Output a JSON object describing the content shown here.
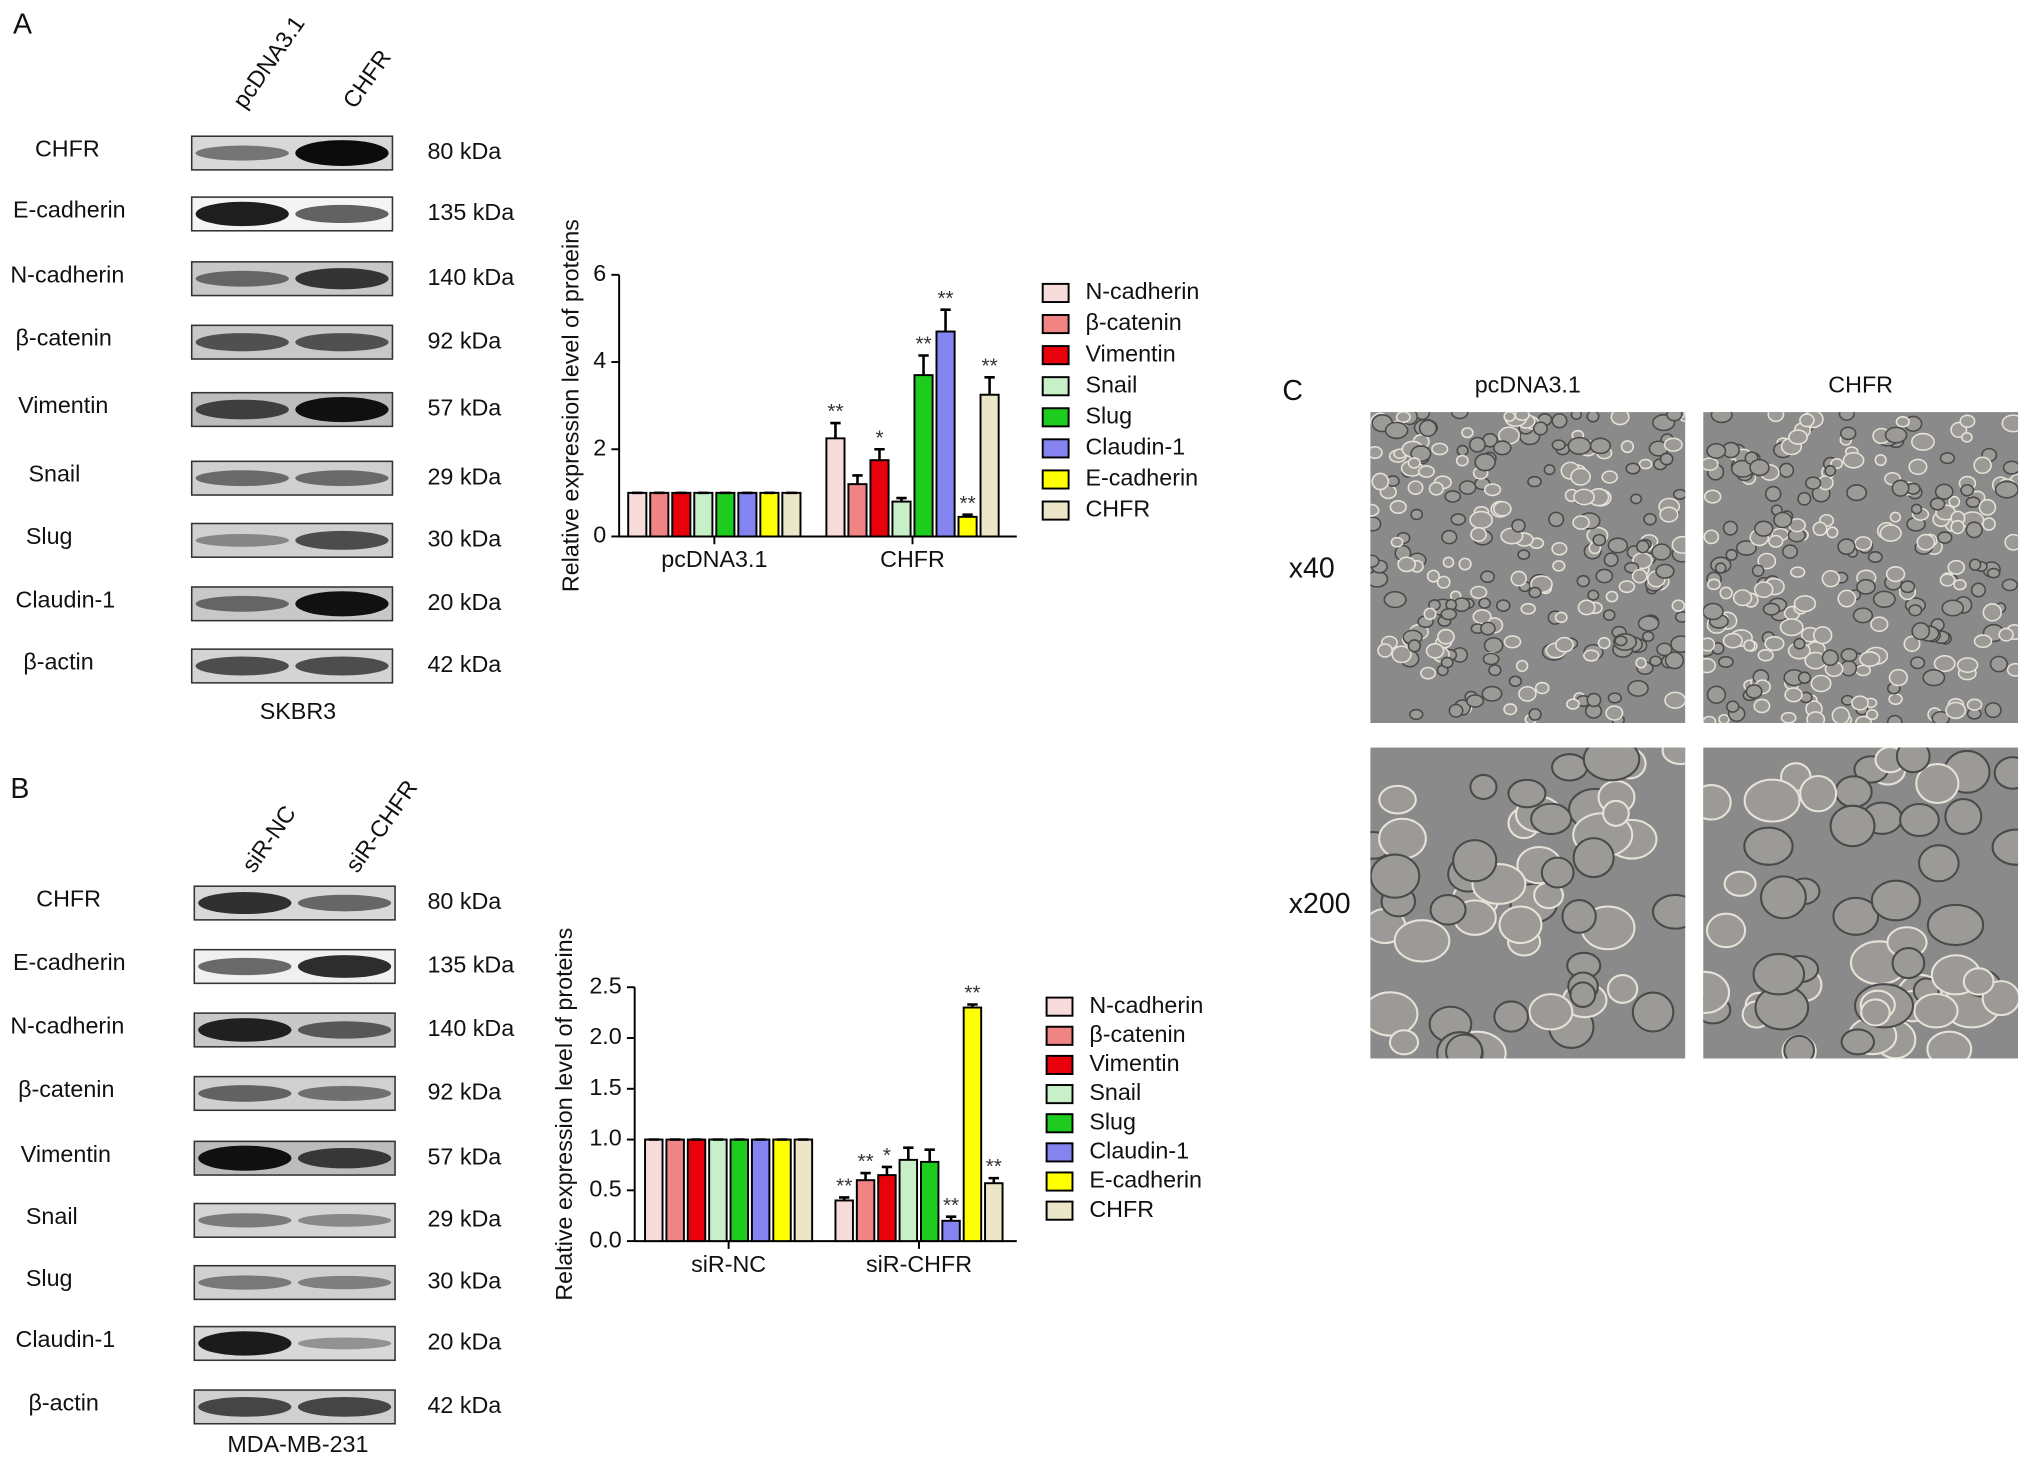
{
  "panel_a": {
    "label": "A",
    "lanes": [
      "pcDNA3.1",
      "CHFR"
    ],
    "proteins": [
      {
        "name": "CHFR",
        "size": "80 kDa"
      },
      {
        "name": "E-cadherin",
        "size": "135 kDa"
      },
      {
        "name": "N-cadherin",
        "size": "140 kDa"
      },
      {
        "name": "β-catenin",
        "size": "92 kDa"
      },
      {
        "name": "Vimentin",
        "size": "57 kDa"
      },
      {
        "name": "Snail",
        "size": "29 kDa"
      },
      {
        "name": "Slug",
        "size": "30 kDa"
      },
      {
        "name": "Claudin-1",
        "size": "20 kDa"
      },
      {
        "name": "β-actin",
        "size": "42 kDa"
      }
    ],
    "cell_line": "SKBR3"
  },
  "panel_b": {
    "label": "B",
    "lanes": [
      "siR-NC",
      "siR-CHFR"
    ],
    "proteins": [
      {
        "name": "CHFR",
        "size": "80 kDa"
      },
      {
        "name": "E-cadherin",
        "size": "135 kDa"
      },
      {
        "name": "N-cadherin",
        "size": "140 kDa"
      },
      {
        "name": "β-catenin",
        "size": "92 kDa"
      },
      {
        "name": "Vimentin",
        "size": "57 kDa"
      },
      {
        "name": "Snail",
        "size": "29 kDa"
      },
      {
        "name": "Slug",
        "size": "30 kDa"
      },
      {
        "name": "Claudin-1",
        "size": "20 kDa"
      },
      {
        "name": "β-actin",
        "size": "42 kDa"
      }
    ],
    "cell_line": "MDA-MB-231"
  },
  "chart_data": [
    {
      "type": "bar",
      "y_label": "Relative expression level of proteins",
      "categories": [
        "pcDNA3.1",
        "CHFR"
      ],
      "ylim": [
        0,
        6
      ],
      "yticks": [
        0,
        2,
        4,
        6
      ],
      "series": [
        {
          "name": "N-cadherin",
          "color": "#f8dcdc",
          "values": [
            1,
            2.25
          ],
          "errors": [
            0,
            0.35
          ],
          "significance": [
            null,
            "**"
          ]
        },
        {
          "name": "β-catenin",
          "color": "#f08484",
          "values": [
            1,
            1.2
          ],
          "errors": [
            0,
            0.2
          ],
          "significance": [
            null,
            null
          ]
        },
        {
          "name": "Vimentin",
          "color": "#e8000b",
          "values": [
            1,
            1.75
          ],
          "errors": [
            0,
            0.25
          ],
          "significance": [
            null,
            "*"
          ]
        },
        {
          "name": "Snail",
          "color": "#c8f0c8",
          "values": [
            1,
            0.8
          ],
          "errors": [
            0,
            0.08
          ],
          "significance": [
            null,
            null
          ]
        },
        {
          "name": "Slug",
          "color": "#1ecc1e",
          "values": [
            1,
            3.7
          ],
          "errors": [
            0,
            0.45
          ],
          "significance": [
            null,
            "**"
          ]
        },
        {
          "name": "Claudin-1",
          "color": "#8484f0",
          "values": [
            1,
            4.7
          ],
          "errors": [
            0,
            0.5
          ],
          "significance": [
            null,
            "**"
          ]
        },
        {
          "name": "E-cadherin",
          "color": "#ffff00",
          "values": [
            1,
            0.45
          ],
          "errors": [
            0,
            0.05
          ],
          "significance": [
            null,
            "**"
          ]
        },
        {
          "name": "CHFR",
          "color": "#ece6c8",
          "values": [
            1,
            3.25
          ],
          "errors": [
            0,
            0.4
          ],
          "significance": [
            null,
            "**"
          ]
        }
      ]
    },
    {
      "type": "bar",
      "y_label": "Relative expression level of proteins",
      "categories": [
        "siR-NC",
        "siR-CHFR"
      ],
      "ylim": [
        0,
        2.5
      ],
      "yticks": [
        {
          "value": 0,
          "label": "0.0"
        },
        0.5,
        {
          "value": 1,
          "label": "1.0"
        },
        1.5,
        {
          "value": 2,
          "label": "2.0"
        },
        2.5
      ],
      "series": [
        {
          "name": "N-cadherin",
          "color": "#f8dcdc",
          "values": [
            1,
            0.4
          ],
          "errors": [
            0,
            0.03
          ],
          "significance": [
            null,
            "**"
          ]
        },
        {
          "name": "β-catenin",
          "color": "#f08484",
          "values": [
            1,
            0.6
          ],
          "errors": [
            0,
            0.07
          ],
          "significance": [
            null,
            "**"
          ]
        },
        {
          "name": "Vimentin",
          "color": "#e8000b",
          "values": [
            1,
            0.65
          ],
          "errors": [
            0,
            0.08
          ],
          "significance": [
            null,
            "*"
          ]
        },
        {
          "name": "Snail",
          "color": "#c8f0c8",
          "values": [
            1,
            0.8
          ],
          "errors": [
            0,
            0.12
          ],
          "significance": [
            null,
            null
          ]
        },
        {
          "name": "Slug",
          "color": "#1ecc1e",
          "values": [
            1,
            0.78
          ],
          "errors": [
            0,
            0.12
          ],
          "significance": [
            null,
            null
          ]
        },
        {
          "name": "Claudin-1",
          "color": "#8484f0",
          "values": [
            1,
            0.2
          ],
          "errors": [
            0,
            0.04
          ],
          "significance": [
            null,
            "**"
          ]
        },
        {
          "name": "E-cadherin",
          "color": "#ffff00",
          "values": [
            1,
            2.3
          ],
          "errors": [
            0,
            0.03
          ],
          "significance": [
            null,
            "**"
          ]
        },
        {
          "name": "CHFR",
          "color": "#ece6c8",
          "values": [
            1,
            0.57
          ],
          "errors": [
            0,
            0.05
          ],
          "significance": [
            null,
            "**"
          ]
        }
      ]
    }
  ],
  "panel_c": {
    "label": "C",
    "columns": [
      "pcDNA3.1",
      "CHFR"
    ],
    "rows": [
      "x40",
      "x200"
    ]
  }
}
